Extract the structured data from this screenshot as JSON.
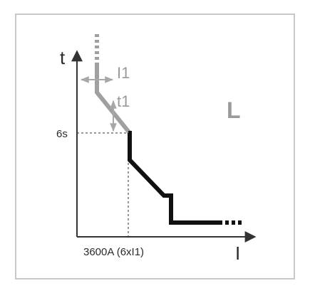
{
  "diagram": {
    "curve_id_label": "L",
    "axis_t_label": "t",
    "axis_i_label": "I",
    "param_i1_label": "I1",
    "param_t1_label": "t1",
    "time_marker_label": "6s",
    "current_marker_label": "3600A (6xI1)"
  },
  "colors": {
    "border": "#c8c8c8",
    "axis": "#333333",
    "curve_adjustable": "#a0a0a0",
    "curve_fixed": "#111111",
    "label": "#2b2b2b",
    "label_grey": "#9a9a9a",
    "arrow_grey": "#a8a8a8"
  }
}
